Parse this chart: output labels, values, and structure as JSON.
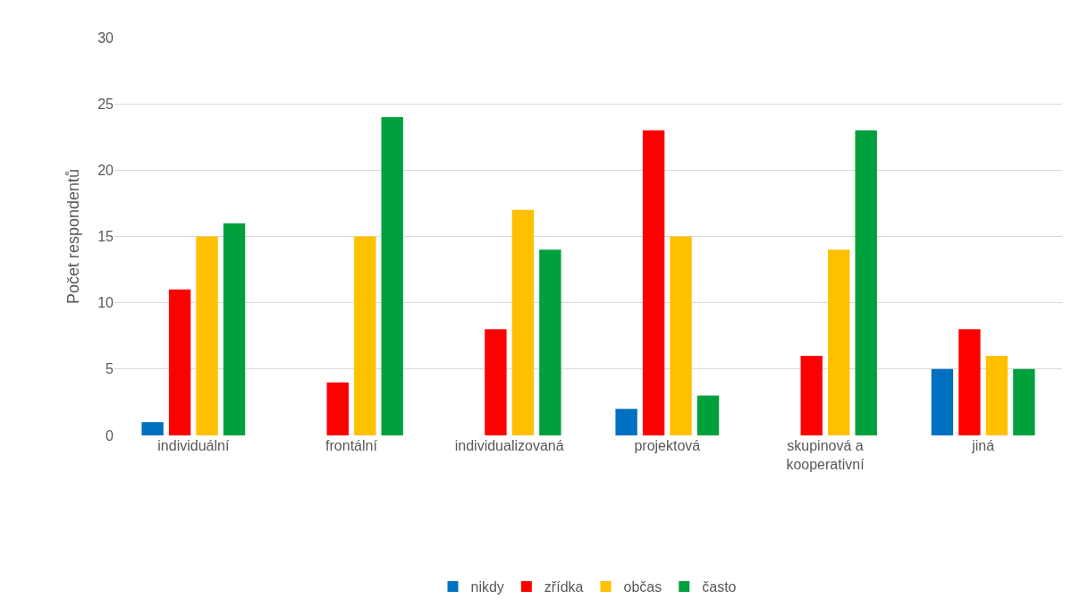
{
  "chart_data": {
    "type": "bar",
    "ylabel": "Počet respondentů",
    "categories": [
      "individuální",
      "frontální",
      "individualizovaná",
      "projektová",
      "skupinová a kooperativní",
      "jiná"
    ],
    "series": [
      {
        "name": "nikdy",
        "color": "#0070c0",
        "values": [
          1,
          0,
          0,
          2,
          0,
          5
        ]
      },
      {
        "name": "zřídka",
        "color": "#ff0000",
        "values": [
          11,
          4,
          8,
          23,
          6,
          8
        ]
      },
      {
        "name": "občas",
        "color": "#ffc000",
        "values": [
          15,
          15,
          17,
          15,
          14,
          6
        ]
      },
      {
        "name": "často",
        "color": "#00a03c",
        "values": [
          16,
          24,
          14,
          3,
          23,
          5
        ]
      }
    ],
    "ylim": [
      0,
      30
    ],
    "yticks": [
      0,
      5,
      10,
      15,
      20,
      25,
      30
    ],
    "grid": "y",
    "legend": "bottom"
  }
}
